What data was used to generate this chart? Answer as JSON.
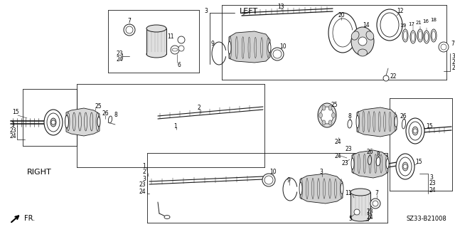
{
  "bg_color": "#ffffff",
  "fig_width": 6.4,
  "fig_height": 3.19,
  "dpi": 100,
  "label_LEFT": "LEFT",
  "label_RIGHT": "RIGHT",
  "label_FR": "FR.",
  "part_number": "SZ33-B21008",
  "line_color": "#1a1a1a",
  "gray_fill": "#cccccc",
  "dark_gray": "#888888"
}
